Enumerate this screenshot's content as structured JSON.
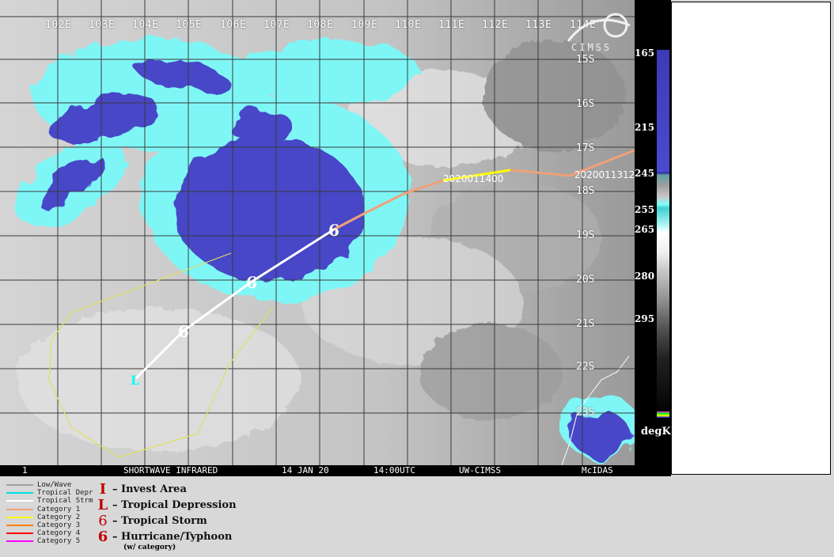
{
  "map": {
    "lon_labels": [
      "102E",
      "103E",
      "104E",
      "105E",
      "106E",
      "107E",
      "108E",
      "109E",
      "110E",
      "111E",
      "112E",
      "113E",
      "114E"
    ],
    "lat_labels": [
      "15S",
      "16S",
      "17S",
      "18S",
      "19S",
      "20S",
      "21S",
      "22S",
      "23S"
    ],
    "logo_text": "CIMSS",
    "track_labels": {
      "t1": "2020011312",
      "t2": "2020011400"
    },
    "colors": {
      "grid": "#3a3a3a",
      "deep_convection": "#4646c8",
      "cyan": "#7ff6f6",
      "cat1": "#f0a078",
      "cat2": "#ffff00",
      "storm": "#ffffff",
      "depression": "#00ffff",
      "forecast_cone": "#e0e060"
    }
  },
  "bottom_bar": {
    "frame": "1",
    "product": "SHORTWAVE INFRARED",
    "date": "14 JAN 20",
    "time": "14:00UTC",
    "source": "UW-CIMSS",
    "software": "McIDAS"
  },
  "colorbar": {
    "labels": [
      "165",
      "215",
      "245",
      "255",
      "265",
      "280",
      "295"
    ],
    "unit": "degK"
  },
  "legend": {
    "lines": [
      {
        "label": "Low/Wave",
        "color": "#a0a0a0"
      },
      {
        "label": "Tropical Depr",
        "color": "#00e0e0"
      },
      {
        "label": "Tropical Strm",
        "color": "#ffffff"
      },
      {
        "label": "Category 1",
        "color": "#f0a078"
      },
      {
        "label": "Category 2",
        "color": "#ffff00"
      },
      {
        "label": "Category 3",
        "color": "#ff8000"
      },
      {
        "label": "Category 4",
        "color": "#ff0000"
      },
      {
        "label": "Category 5",
        "color": "#ff00ff"
      }
    ],
    "symbols": [
      {
        "symbol": "I",
        "label": "– Invest Area"
      },
      {
        "symbol": "L",
        "label": "– Tropical Depression"
      },
      {
        "symbol": "6",
        "label": "– Tropical Storm"
      },
      {
        "symbol": "6",
        "label": "– Hurricane/Typhoon"
      }
    ],
    "symbol_note": "(w/ category)"
  }
}
